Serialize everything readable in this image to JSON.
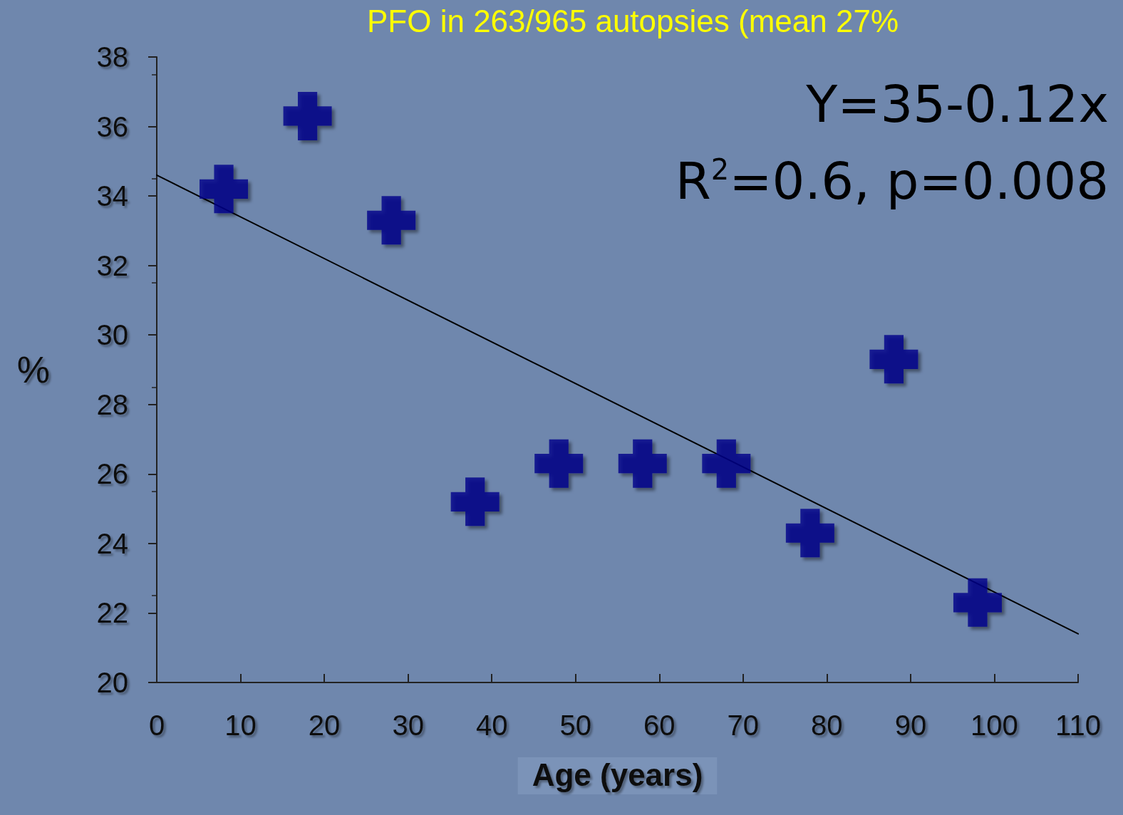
{
  "chart_data": {
    "type": "scatter",
    "title": "PFO in 263/965 autopsies (mean 27%",
    "xlabel": "Age (years)",
    "ylabel": "%",
    "xlim": [
      0,
      110
    ],
    "xticks": [
      0,
      10,
      20,
      30,
      40,
      50,
      60,
      70,
      80,
      90,
      100,
      110
    ],
    "ylim": [
      20,
      38
    ],
    "yticks": [
      20,
      22,
      24,
      26,
      28,
      30,
      32,
      34,
      36,
      38
    ],
    "grid": false,
    "marker": "cross",
    "annotations": [
      "Y=35-0.12x",
      "R$^{2}$=0.6, p=0.008"
    ],
    "series": [
      {
        "color": "#00008b",
        "x": [
          8,
          18,
          28,
          38,
          48,
          58,
          68,
          78,
          88,
          98
        ],
        "values": [
          34.2,
          36.3,
          33.3,
          25.2,
          26.3,
          26.3,
          26.3,
          24.3,
          29.3,
          22.3
        ]
      },
      {
        "type": "line",
        "color": "#000000",
        "marker": "none",
        "line_style": "solid",
        "x": [
          0,
          110
        ],
        "values": [
          34.6,
          21.4
        ]
      }
    ]
  }
}
